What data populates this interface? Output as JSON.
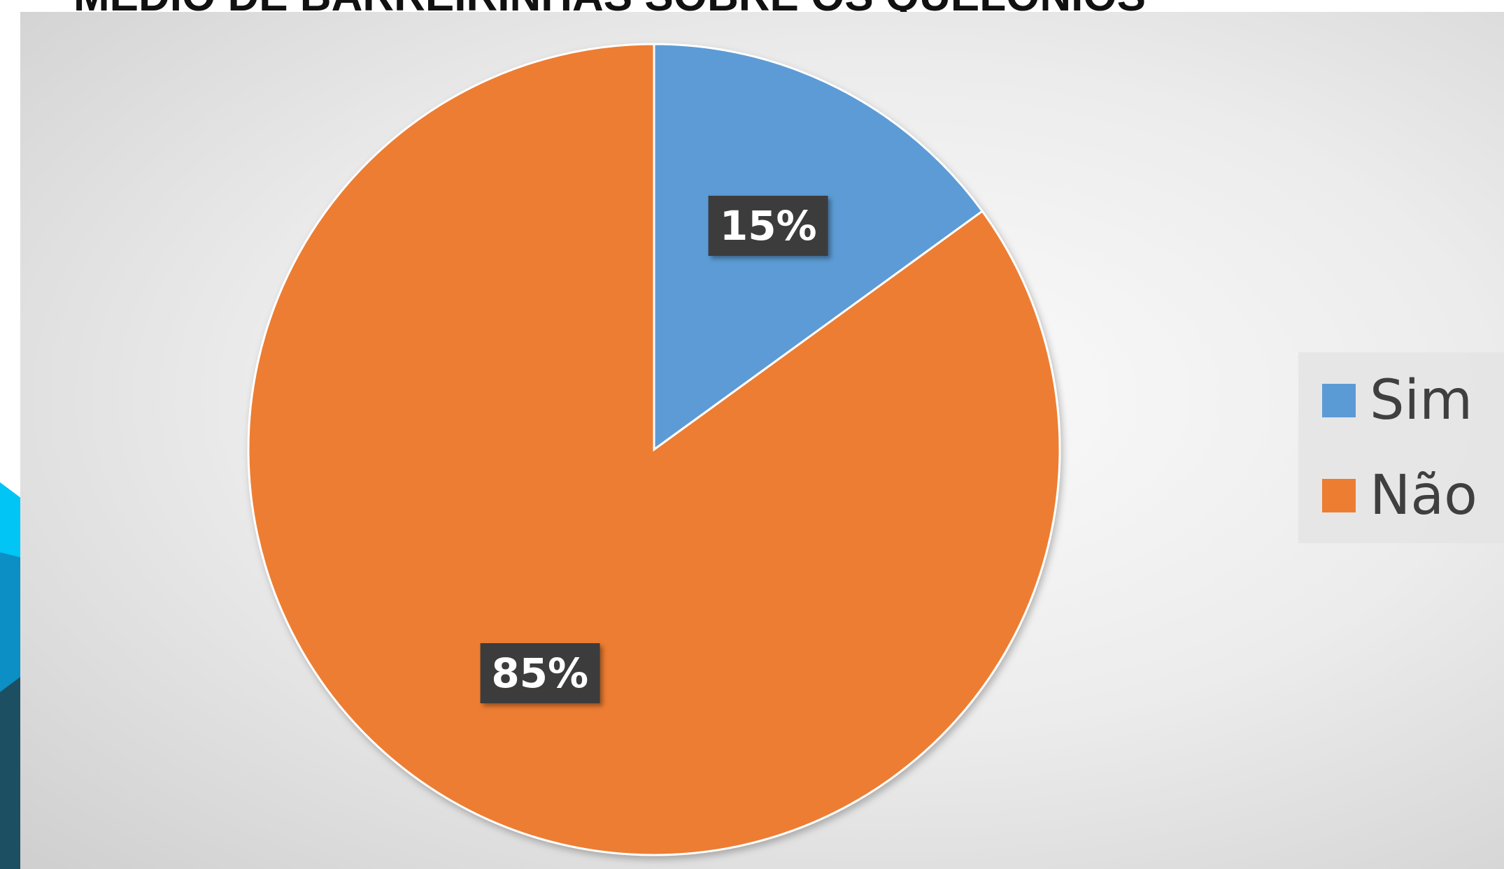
{
  "page": {
    "title": "MEDIO DE BARREIRINHAS SOBRE OS QUELÔNIOS"
  },
  "chart_data": {
    "type": "pie",
    "categories": [
      "Sim",
      "Não"
    ],
    "values": [
      15,
      85
    ],
    "data_labels": [
      "15%",
      "85%"
    ],
    "colors": [
      "#5b9bd5",
      "#ed7d31"
    ],
    "start_angle_deg": 0,
    "direction": "clockwise",
    "legend": "right"
  }
}
